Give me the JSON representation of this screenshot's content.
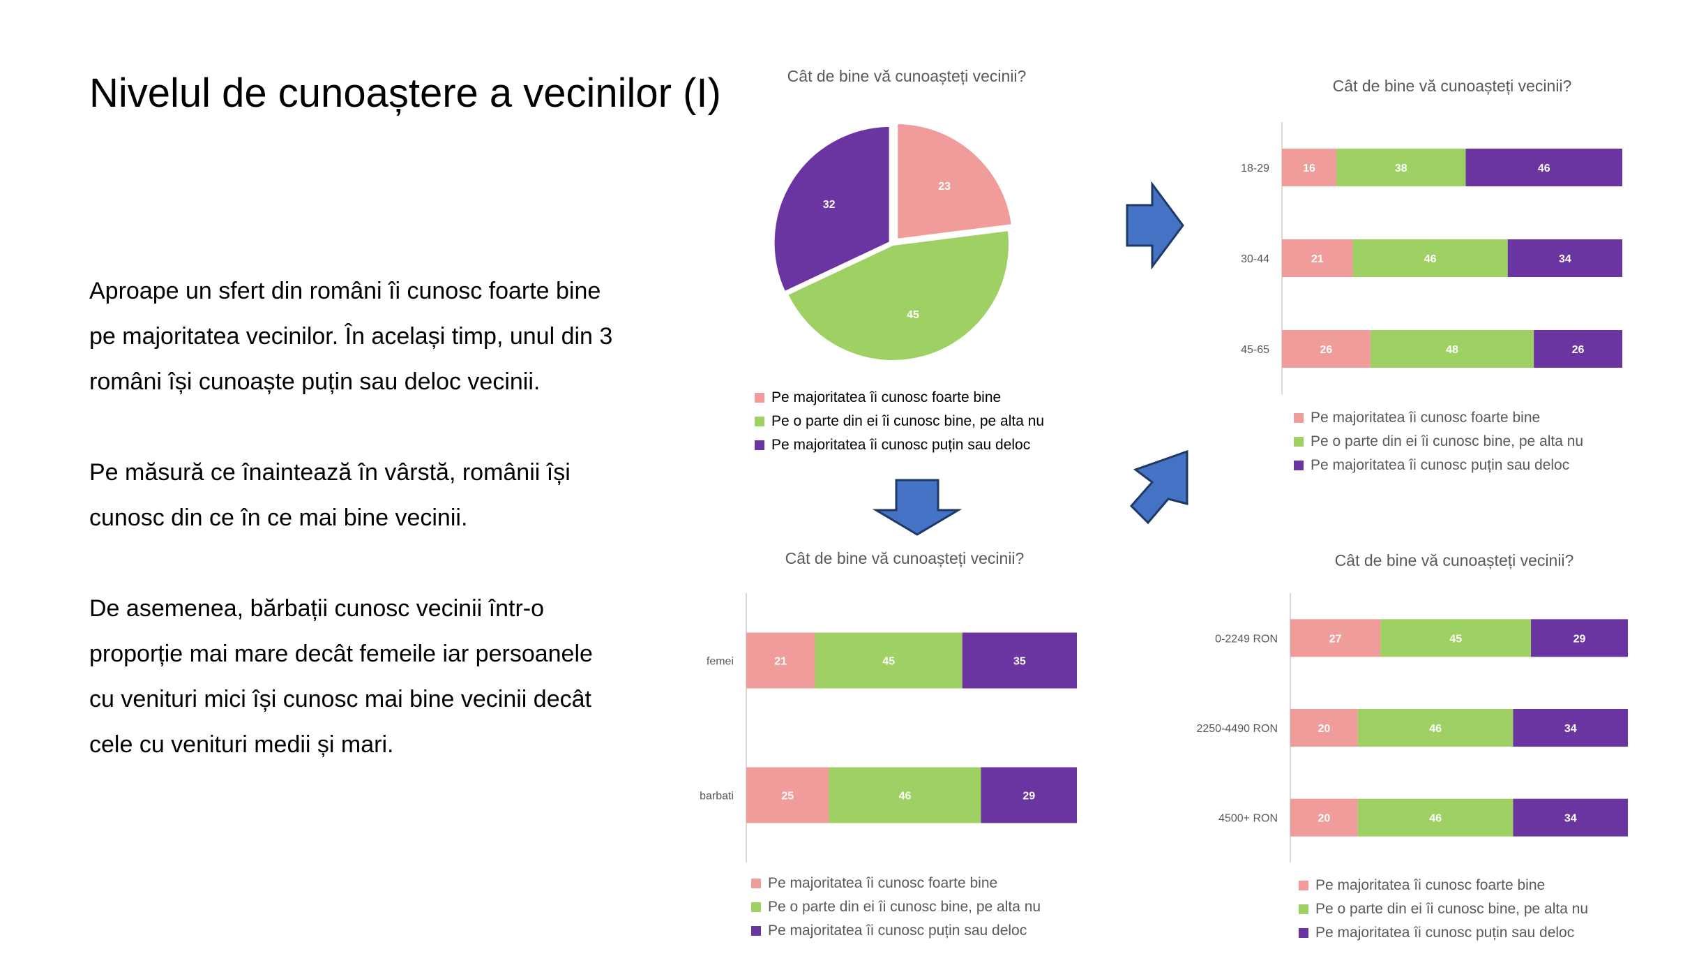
{
  "slide": {
    "title": "Nivelul de cunoaștere a vecinilor (I)",
    "paragraphs": [
      [
        "Aproape un sfert din români îi cunosc foarte bine",
        "pe majoritatea vecinilor. În același timp, unul din 3",
        "români își cunoaște puțin sau deloc vecinii."
      ],
      [
        "Pe măsură ce înaintează în vârstă, românii își",
        "cunosc din ce în ce mai bine vecinii."
      ],
      [
        "De asemenea, bărbații cunosc vecinii într-o",
        "proporție mai mare decât femeile iar persoanele",
        "cu venituri mici își cunosc mai bine vecinii decât",
        "cele cu venituri medii și mari."
      ]
    ]
  },
  "colors": {
    "series1": "#F09C9A",
    "series2": "#9FD063",
    "series3": "#6A35A0",
    "arrow": "#4472C4",
    "arrow_border": "#1F3864"
  },
  "chart_data": [
    {
      "type": "pie",
      "title": "Cât de bine vă cunoașteți vecinii?",
      "labels": [
        "Pe majoritatea îi cunosc foarte bine",
        "Pe o parte din ei îi cunosc bine, pe alta nu",
        "Pe majoritatea îi cunosc puțin sau deloc"
      ],
      "values": [
        23,
        45,
        32
      ],
      "legend_position": "bottom"
    },
    {
      "type": "bar",
      "stacked": true,
      "orientation": "horizontal",
      "title": "Cât de bine vă cunoașteți vecinii?",
      "categories": [
        "18-29",
        "30-44",
        "45-65"
      ],
      "series": [
        {
          "name": "Pe majoritatea îi cunosc foarte bine",
          "values": [
            16,
            21,
            26
          ]
        },
        {
          "name": "Pe o parte din ei îi cunosc bine, pe alta nu",
          "values": [
            38,
            46,
            48
          ]
        },
        {
          "name": "Pe majoritatea îi cunosc puțin sau deloc",
          "values": [
            46,
            34,
            26
          ]
        }
      ],
      "legend_position": "bottom"
    },
    {
      "type": "bar",
      "stacked": true,
      "orientation": "horizontal",
      "title": "Cât de bine vă cunoașteți vecinii?",
      "categories": [
        "femei",
        "barbati"
      ],
      "series": [
        {
          "name": "Pe majoritatea îi cunosc foarte bine",
          "values": [
            21,
            25
          ]
        },
        {
          "name": "Pe o parte din ei îi cunosc bine, pe alta nu",
          "values": [
            45,
            46
          ]
        },
        {
          "name": "Pe majoritatea îi cunosc puțin sau deloc",
          "values": [
            35,
            29
          ]
        }
      ],
      "legend_position": "bottom"
    },
    {
      "type": "bar",
      "stacked": true,
      "orientation": "horizontal",
      "title": "Cât de bine vă cunoașteți vecinii?",
      "categories": [
        "0-2249 RON",
        "2250-4490 RON",
        "4500+ RON"
      ],
      "series": [
        {
          "name": "Pe majoritatea îi cunosc foarte bine",
          "values": [
            27,
            20,
            20
          ]
        },
        {
          "name": "Pe o parte din ei îi cunosc bine, pe alta nu",
          "values": [
            45,
            46,
            46
          ]
        },
        {
          "name": "Pe majoritatea îi cunosc puțin sau deloc",
          "values": [
            29,
            34,
            34
          ]
        }
      ],
      "legend_position": "bottom"
    }
  ]
}
